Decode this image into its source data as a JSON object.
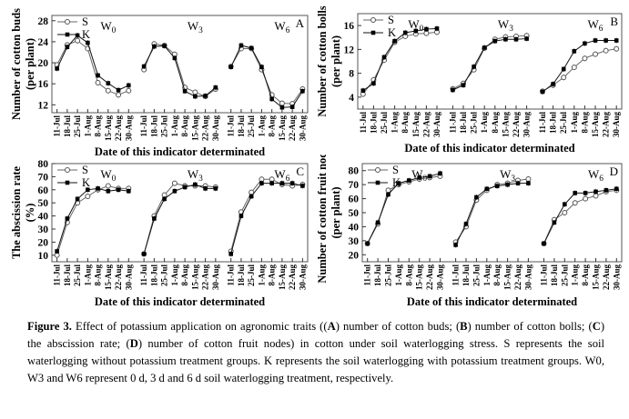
{
  "chart_data": [
    {
      "type": "line",
      "panel_letter": "A",
      "ylabel": [
        "Number of cotton buds",
        "(per plant)"
      ],
      "xlabel": "Date of  this indicator determinated",
      "ylim": [
        10.5,
        29
      ],
      "yticks": [
        12,
        16,
        20,
        24,
        28
      ],
      "categories": [
        "11-Jul",
        "18-Jul",
        "25-Jul",
        "1-Aug",
        "8-Aug",
        "15-Aug",
        "22-Aug",
        "30-Aug"
      ],
      "groups": [
        "W0",
        "W3",
        "W6"
      ],
      "legend": [
        "S",
        "K"
      ],
      "legend_position": "top-left",
      "grid": false,
      "series": [
        {
          "name": "S",
          "marker": "open-circle",
          "values": [
            [
              19.6,
              23.4,
              24.2,
              22.7,
              16.2,
              14.7,
              13.9,
              14.7
            ],
            [
              18.7,
              23.6,
              23.3,
              21.6,
              15.3,
              14.4,
              13.6,
              15.0
            ],
            [
              19.3,
              22.7,
              22.7,
              18.7,
              13.9,
              12.3,
              12.2,
              15.0
            ]
          ]
        },
        {
          "name": "K",
          "marker": "filled-square",
          "values": [
            [
              18.9,
              23.0,
              25.2,
              23.8,
              17.6,
              16.1,
              14.8,
              15.7
            ],
            [
              19.3,
              23.1,
              23.2,
              20.9,
              14.6,
              13.6,
              13.7,
              15.3
            ],
            [
              19.2,
              23.3,
              22.8,
              19.2,
              13.1,
              11.5,
              11.6,
              14.6
            ]
          ]
        }
      ]
    },
    {
      "type": "line",
      "panel_letter": "B",
      "ylabel": [
        "Number of cotton bolls",
        "(per plant)"
      ],
      "xlabel": "Date of  this indicator determinated",
      "ylim": [
        2,
        18
      ],
      "yticks": [
        4,
        8,
        12,
        16
      ],
      "categories": [
        "11-Jul",
        "18-Jul",
        "25-Jul",
        "1-Aug",
        "8-Aug",
        "15-Aug",
        "22-Aug",
        "30-Aug"
      ],
      "groups": [
        "W0",
        "W3",
        "W6"
      ],
      "legend": [
        "S",
        "K"
      ],
      "legend_position": "top-left",
      "grid": false,
      "series": [
        {
          "name": "S",
          "marker": "open-circle",
          "values": [
            [
              4.5,
              6.9,
              10.2,
              13.2,
              14.2,
              14.6,
              14.7,
              14.9
            ],
            [
              5.4,
              6.3,
              8.6,
              12.2,
              13.7,
              14.1,
              14.2,
              14.3
            ],
            [
              5.0,
              6.0,
              7.3,
              9.0,
              10.5,
              11.2,
              11.8,
              12.1
            ]
          ]
        },
        {
          "name": "K",
          "marker": "filled-square",
          "values": [
            [
              5.1,
              6.3,
              10.7,
              13.4,
              14.8,
              15.1,
              15.4,
              15.5
            ],
            [
              5.2,
              6.0,
              9.1,
              12.3,
              13.4,
              13.7,
              13.7,
              13.8
            ],
            [
              4.9,
              6.2,
              8.7,
              11.7,
              13.0,
              13.5,
              13.5,
              13.5
            ]
          ]
        }
      ]
    },
    {
      "type": "line",
      "panel_letter": "C",
      "ylabel": [
        "The abscission rate",
        "(%)"
      ],
      "xlabel": "Date of  this indicator determinated",
      "ylim": [
        5,
        80
      ],
      "yticks": [
        10,
        20,
        30,
        40,
        50,
        60,
        70,
        80
      ],
      "categories": [
        "11-Jul",
        "18-Jul",
        "25-Jul",
        "1-Aug",
        "8-Aug",
        "15-Aug",
        "22-Aug",
        "30-Aug"
      ],
      "groups": [
        "W0",
        "W3",
        "W6"
      ],
      "legend": [
        "S",
        "K"
      ],
      "legend_position": "top-left",
      "grid": false,
      "series": [
        {
          "name": "S",
          "marker": "open-circle",
          "values": [
            [
              10,
              35,
              50,
              55,
              60,
              63,
              61,
              61
            ],
            [
              11,
              40,
              56,
              65,
              63,
              63,
              63,
              62
            ],
            [
              13,
              43,
              58,
              68,
              68,
              64,
              63,
              64
            ]
          ]
        },
        {
          "name": "K",
          "marker": "filled-square",
          "values": [
            [
              13,
              38,
              53,
              60,
              61,
              59,
              60,
              59
            ],
            [
              11,
              38,
              53,
              59,
              62,
              64,
              61,
              61
            ],
            [
              11,
              40,
              55,
              65,
              65,
              65,
              65,
              63
            ]
          ]
        }
      ]
    },
    {
      "type": "line",
      "panel_letter": "D",
      "ylabel": [
        "Number of cotton fruit nodes",
        "(per plant)"
      ],
      "xlabel": "Date of  this indicator determinated",
      "ylim": [
        15,
        85
      ],
      "yticks": [
        20,
        30,
        40,
        50,
        60,
        70,
        80
      ],
      "categories": [
        "11-Jul",
        "18-Jul",
        "25-Jul",
        "1-Aug",
        "8-Aug",
        "15-Aug",
        "22-Aug",
        "30-Aug"
      ],
      "groups": [
        "W0",
        "W3",
        "W6"
      ],
      "legend": [
        "S",
        "K"
      ],
      "legend_position": "top-left",
      "grid": false,
      "series": [
        {
          "name": "S",
          "marker": "open-circle",
          "values": [
            [
              28,
              42,
              66,
              70,
              72,
              74,
              75,
              76
            ],
            [
              29,
              40,
              59,
              66,
              70,
              71,
              73,
              74
            ],
            [
              28,
              45,
              50,
              57,
              60,
              62,
              65,
              66
            ]
          ]
        },
        {
          "name": "K",
          "marker": "filled-square",
          "values": [
            [
              28,
              43,
              63,
              71,
              73,
              75,
              76,
              78
            ],
            [
              27,
              42,
              61,
              67,
              69,
              70,
              71,
              71
            ],
            [
              28,
              43,
              56,
              64,
              64,
              65,
              66,
              67
            ]
          ]
        }
      ]
    }
  ],
  "caption": {
    "figure_label": "Figure 3.",
    "t1": " Effect of potassium application on agronomic traits ((",
    "a": "A",
    "t2": ") number of cotton buds; (",
    "b": "B",
    "t3": ") number of cotton bolls; (",
    "c": "C",
    "t4": ") the abscission rate; (",
    "d": "D",
    "t5": ") number of cotton fruit nodes) in cotton under soil waterlogging stress. S represents the soil waterlogging without potassium treatment groups. K represents the soil waterlogging with potassium treatment groups. W0, W3 and W6 represent 0 d, 3 d and 6 d soil waterlogging treatment, respectively."
  }
}
